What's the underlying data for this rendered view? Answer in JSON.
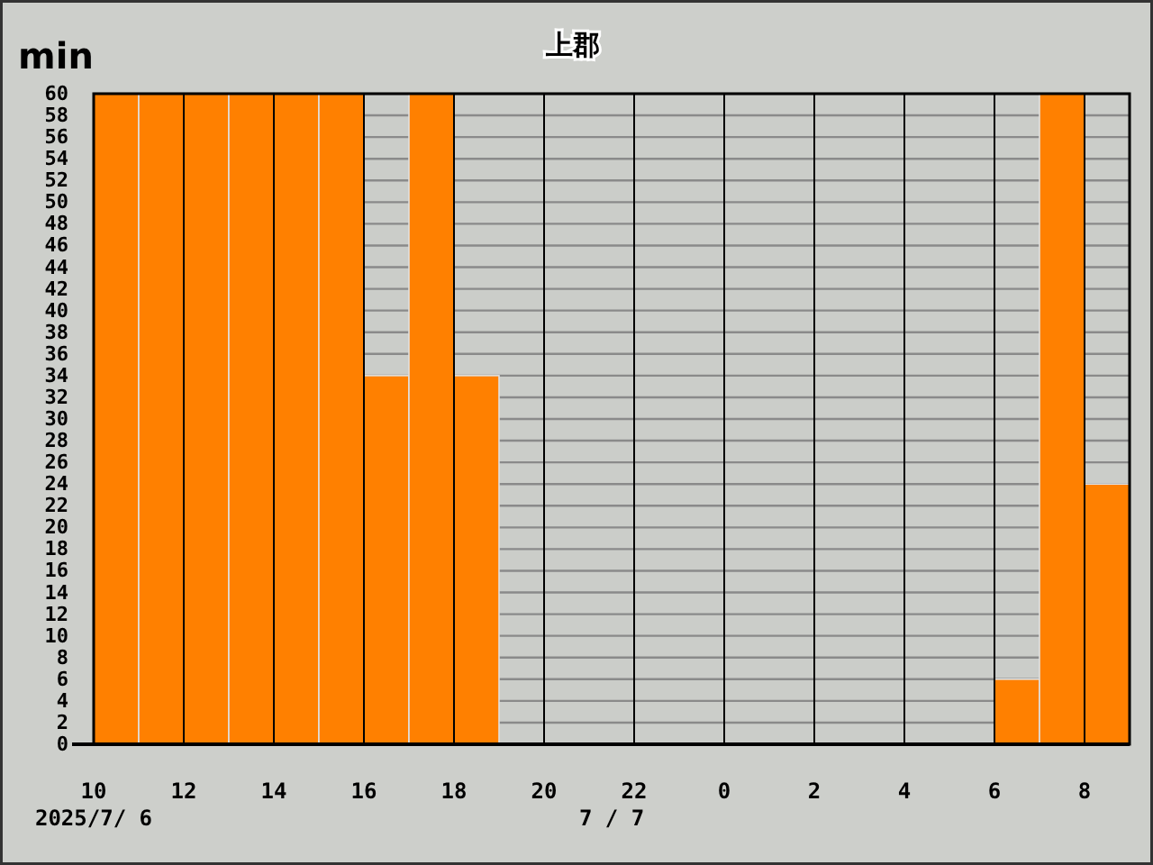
{
  "chart_data": {
    "type": "bar",
    "title": "上郡",
    "ylabel": "min",
    "x": [
      "2025-07-06T10:30",
      "2025-07-06T11:30",
      "2025-07-06T12:30",
      "2025-07-06T13:30",
      "2025-07-06T14:30",
      "2025-07-06T15:30",
      "2025-07-06T16:30",
      "2025-07-06T17:30",
      "2025-07-06T18:30",
      "2025-07-06T19:30",
      "2025-07-06T20:30",
      "2025-07-06T21:30",
      "2025-07-06T22:30",
      "2025-07-06T23:30",
      "2025-07-07T00:30",
      "2025-07-07T01:30",
      "2025-07-07T02:30",
      "2025-07-07T03:30",
      "2025-07-07T04:30",
      "2025-07-07T05:30",
      "2025-07-07T06:30",
      "2025-07-07T07:30",
      "2025-07-07T08:30"
    ],
    "values": [
      60,
      60,
      60,
      60,
      60,
      60,
      34,
      60,
      34,
      0,
      0,
      0,
      0,
      0,
      0,
      0,
      0,
      0,
      0,
      0,
      6,
      60,
      24
    ],
    "color": "#ff8000",
    "xlim": [
      "2025-07-06T10:00",
      "2025-07-07T09:00"
    ],
    "xticks": [
      {
        "value": "2025-07-06T10:00",
        "label": "10"
      },
      {
        "value": "2025-07-06T12:00",
        "label": "12"
      },
      {
        "value": "2025-07-06T14:00",
        "label": "14"
      },
      {
        "value": "2025-07-06T16:00",
        "label": "16"
      },
      {
        "value": "2025-07-06T18:00",
        "label": "18"
      },
      {
        "value": "2025-07-06T20:00",
        "label": "20"
      },
      {
        "value": "2025-07-06T22:00",
        "label": "22"
      },
      {
        "value": "2025-07-07T00:00",
        "label": "0"
      },
      {
        "value": "2025-07-07T02:00",
        "label": "2"
      },
      {
        "value": "2025-07-07T04:00",
        "label": "4"
      },
      {
        "value": "2025-07-07T06:00",
        "label": "6"
      },
      {
        "value": "2025-07-07T08:00",
        "label": "8"
      }
    ],
    "ylim": [
      0,
      60
    ],
    "yticks": [
      0,
      2,
      4,
      6,
      8,
      10,
      12,
      14,
      16,
      18,
      20,
      22,
      24,
      26,
      28,
      30,
      32,
      34,
      36,
      38,
      40,
      42,
      44,
      46,
      48,
      50,
      52,
      54,
      56,
      58,
      60
    ],
    "grid": true,
    "annotations": [
      "2025/7/ 6",
      "7 / 7"
    ]
  }
}
